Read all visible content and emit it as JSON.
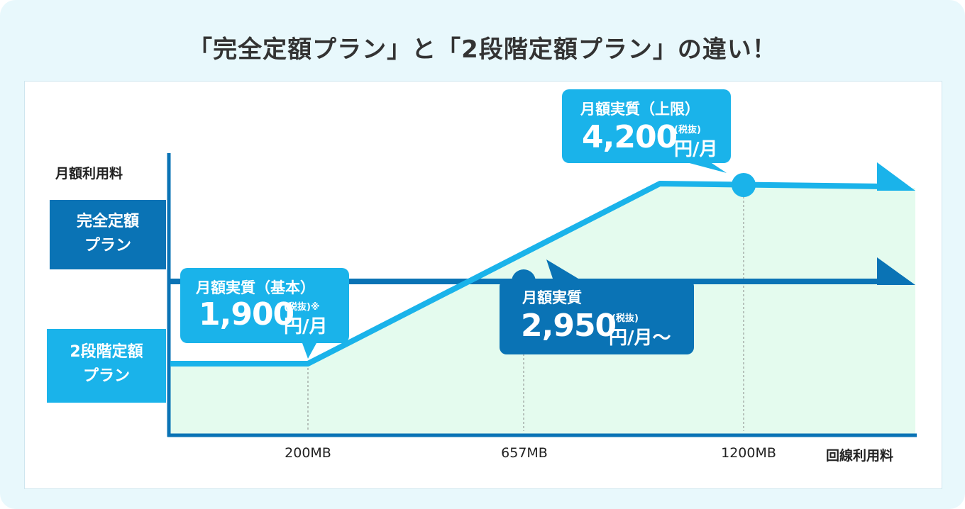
{
  "title": "「完全定額プラン」と「2段階定額プラン」の違い！",
  "colors": {
    "light_blue": "#1ab3ea",
    "dark_blue": "#0a73b5",
    "fill_green": "#e4fbee",
    "background": "#e8f8fc"
  },
  "chart_data": {
    "type": "line",
    "ylabel": "月額利用料",
    "xlabel": "回線利用料",
    "x_ticks": [
      "200MB",
      "657MB",
      "1200MB"
    ],
    "series": [
      {
        "name": "完全定額プラン",
        "name_lines": [
          "完全定額",
          "プラン"
        ],
        "color": "#0a73b5",
        "shape": "flat",
        "values": [
          2950,
          2950,
          2950,
          2950
        ]
      },
      {
        "name": "2段階定額プラン",
        "name_lines": [
          "2段階定額",
          "プラン"
        ],
        "color": "#1ab3ea",
        "shape": "two-tier",
        "values": [
          1900,
          1900,
          2950,
          4200
        ]
      }
    ],
    "annotations": [
      {
        "id": "basic",
        "head": "月額実質（基本）",
        "value": "1,900",
        "tax": "(税抜)※",
        "unit": "円/月"
      },
      {
        "id": "cross",
        "head": "月額実質",
        "value": "2,950",
        "tax": "(税抜)",
        "unit": "円/月〜"
      },
      {
        "id": "upper",
        "head": "月額実質（上限）",
        "value": "4,200",
        "tax": "(税抜)",
        "unit": "円/月"
      }
    ]
  }
}
